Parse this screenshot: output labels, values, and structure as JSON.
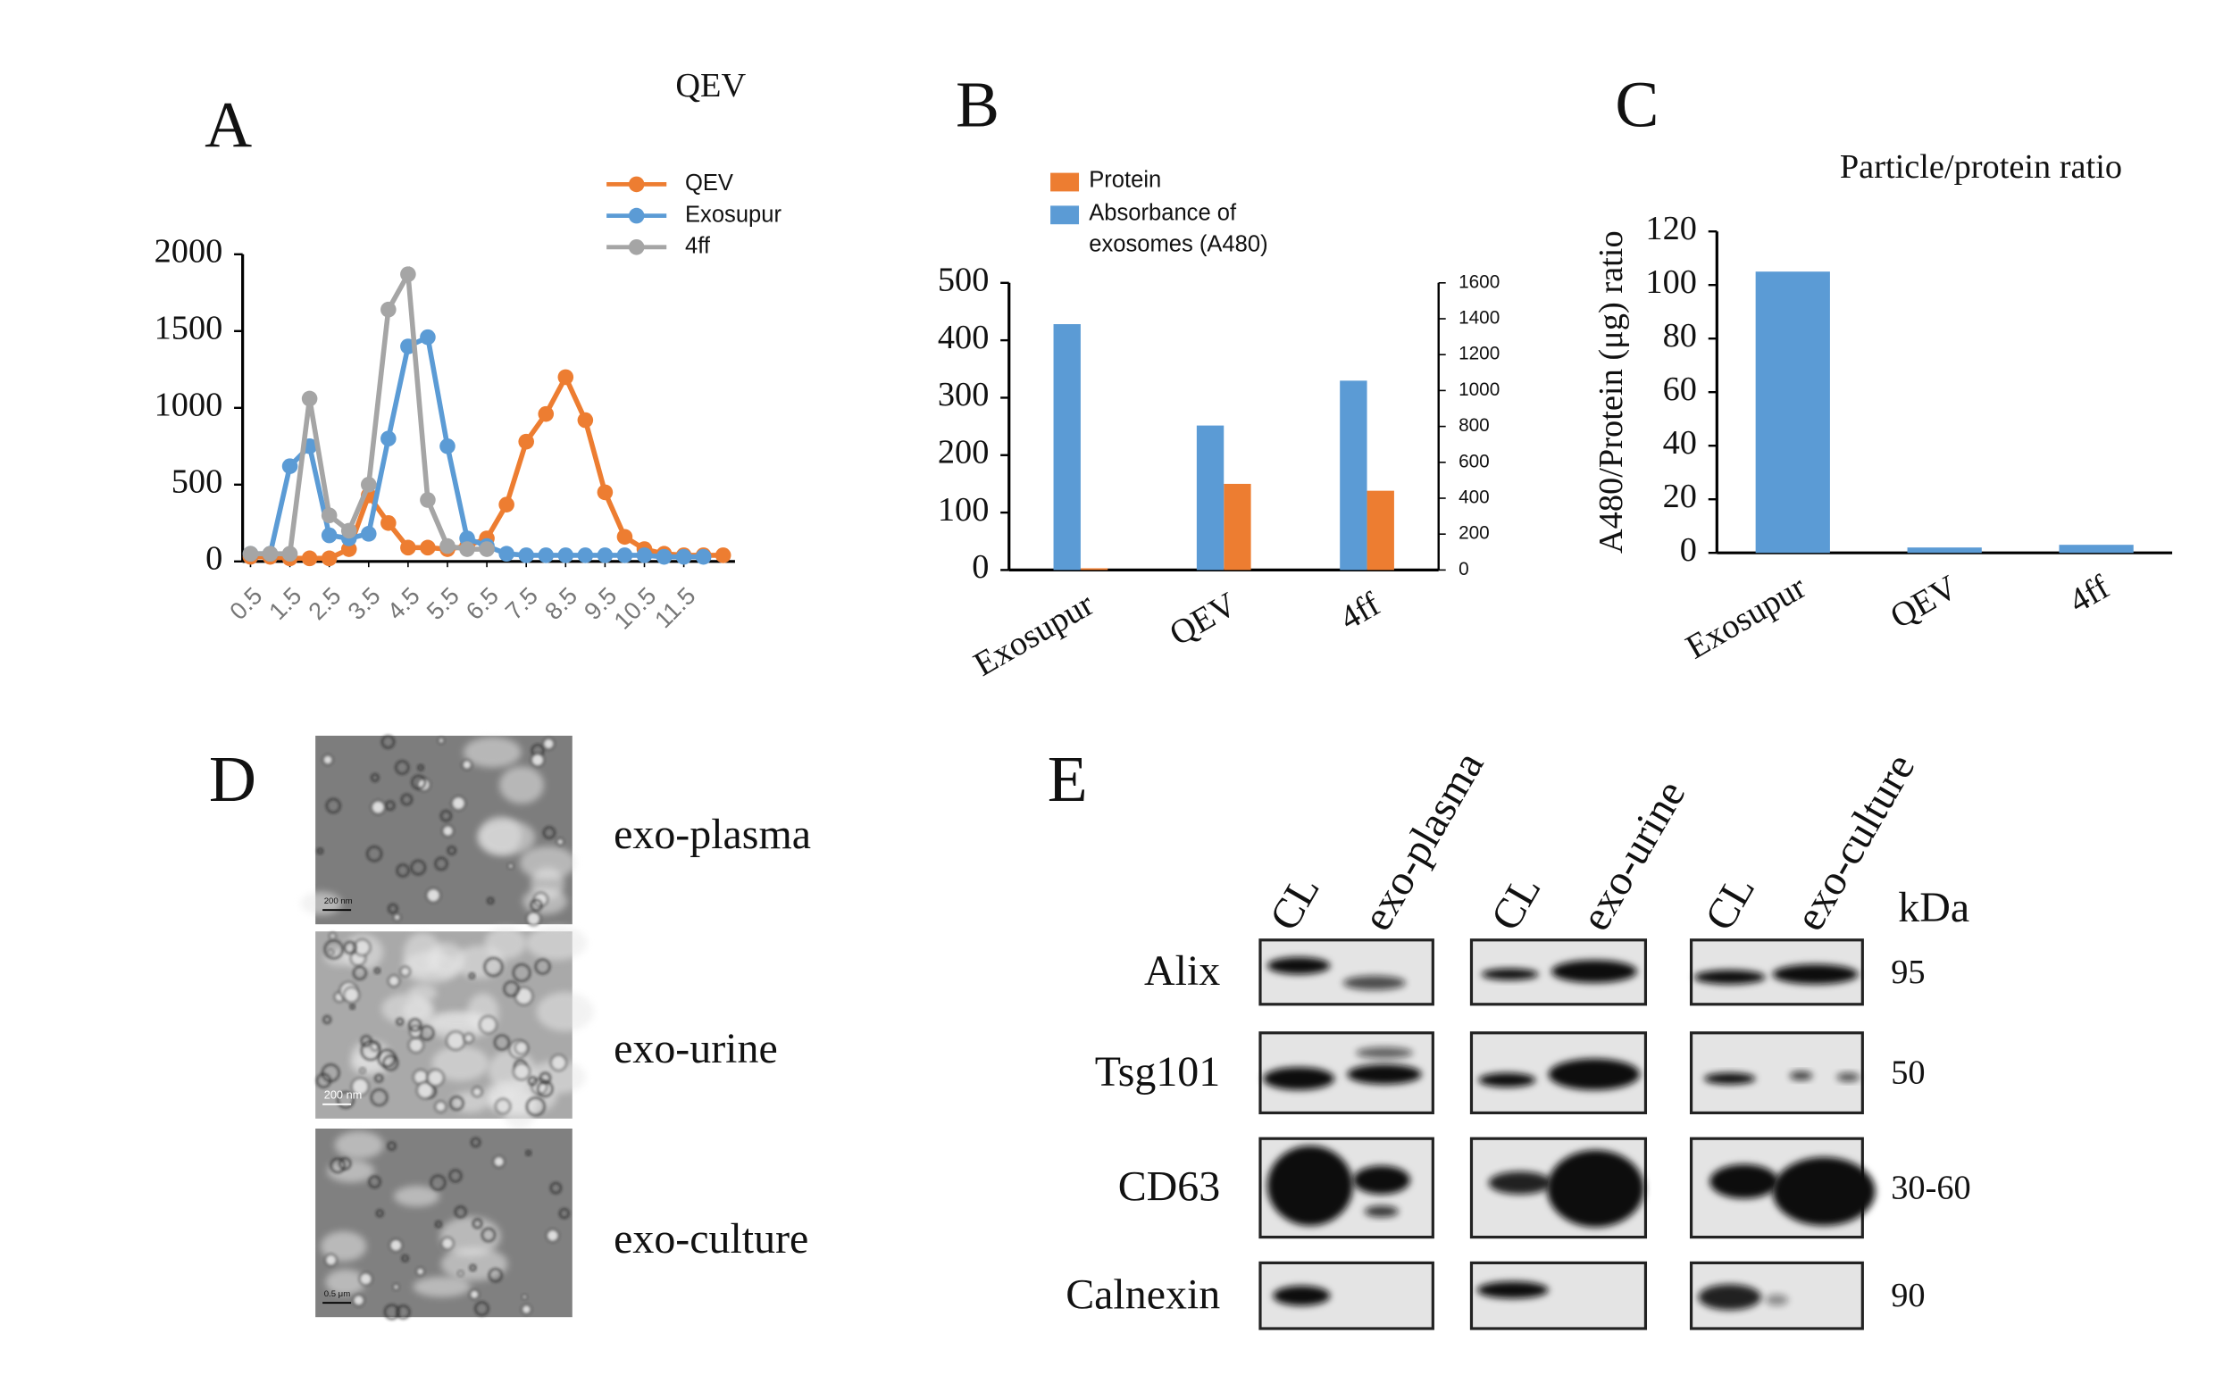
{
  "chart_data": [
    {
      "type": "line",
      "label": "A",
      "title": "QEV",
      "x": [
        0.5,
        1,
        1.5,
        2,
        2.5,
        3,
        3.5,
        4,
        4.5,
        5,
        5.5,
        6,
        6.5,
        7,
        7.5,
        8,
        8.5,
        9,
        9.5,
        10,
        10.5,
        11,
        11.5,
        12,
        12.5
      ],
      "xlim": [
        0.3,
        12.8
      ],
      "xticks": [
        0.5,
        1.5,
        2.5,
        3.5,
        4.5,
        5.5,
        6.5,
        7.5,
        8.5,
        9.5,
        10.5,
        11.5
      ],
      "ylim": [
        0,
        2000
      ],
      "yticks": [
        0,
        500,
        1000,
        1500,
        2000
      ],
      "series": [
        {
          "name": "QEV",
          "color": "#ed7d31",
          "values": [
            30,
            30,
            20,
            20,
            20,
            80,
            430,
            250,
            90,
            90,
            80,
            100,
            150,
            370,
            780,
            960,
            1200,
            920,
            450,
            160,
            80,
            50,
            40,
            40,
            40
          ]
        },
        {
          "name": "Exosupur",
          "color": "#5b9bd5",
          "values": [
            50,
            50,
            620,
            750,
            170,
            150,
            180,
            800,
            1400,
            1460,
            750,
            150,
            100,
            50,
            40,
            40,
            40,
            40,
            40,
            40,
            40,
            30,
            30,
            30,
            null
          ]
        },
        {
          "name": "4ff",
          "color": "#a5a5a5",
          "values": [
            50,
            50,
            50,
            1060,
            300,
            200,
            500,
            1640,
            1870,
            400,
            100,
            80,
            80,
            null,
            null,
            null,
            null,
            null,
            null,
            null,
            null,
            null,
            null,
            null,
            null
          ]
        }
      ]
    },
    {
      "type": "bar",
      "label": "B",
      "categories": [
        "Exosupur",
        "QEV",
        "4ff"
      ],
      "ylim": [
        0,
        500
      ],
      "yticks": [
        0,
        100,
        200,
        300,
        400,
        500
      ],
      "y2lim": [
        0,
        1600
      ],
      "y2ticks": [
        0,
        200,
        400,
        600,
        800,
        1000,
        1200,
        1400,
        1600
      ],
      "series": [
        {
          "name": "Protein",
          "color": "#ed7d31",
          "values": [
            3,
            150,
            138
          ]
        },
        {
          "name": "Absorbance of exosomes (A480)",
          "color": "#5b9bd5",
          "axis": "y2",
          "values": [
            1370,
            805,
            1055
          ]
        }
      ]
    },
    {
      "type": "bar",
      "label": "C",
      "title": "Particle/protein ratio",
      "ylabel": "A480/Protein (μg) ratio",
      "categories": [
        "Exosupur",
        "QEV",
        "4ff"
      ],
      "ylim": [
        0,
        120
      ],
      "yticks": [
        0,
        20,
        40,
        60,
        80,
        100,
        120
      ],
      "color": "#5b9bd5",
      "values": [
        105,
        2,
        3
      ]
    }
  ],
  "panel_d": {
    "label": "D",
    "images": [
      {
        "caption": "exo-plasma",
        "scale_bar": "200 nm"
      },
      {
        "caption": "exo-urine",
        "scale_bar": "200 nm"
      },
      {
        "caption": "exo-culture",
        "scale_bar": "0.5 μm"
      }
    ]
  },
  "panel_e": {
    "label": "E",
    "lanes": [
      "CL",
      "exo-plasma",
      "CL",
      "exo-urine",
      "CL",
      "exo-culture"
    ],
    "unit": "kDa",
    "rows": [
      {
        "name": "Alix",
        "kda": 95
      },
      {
        "name": "Tsg101",
        "kda": 50
      },
      {
        "name": "CD63",
        "kda": "30-60"
      },
      {
        "name": "Calnexin",
        "kda": 90
      }
    ]
  }
}
